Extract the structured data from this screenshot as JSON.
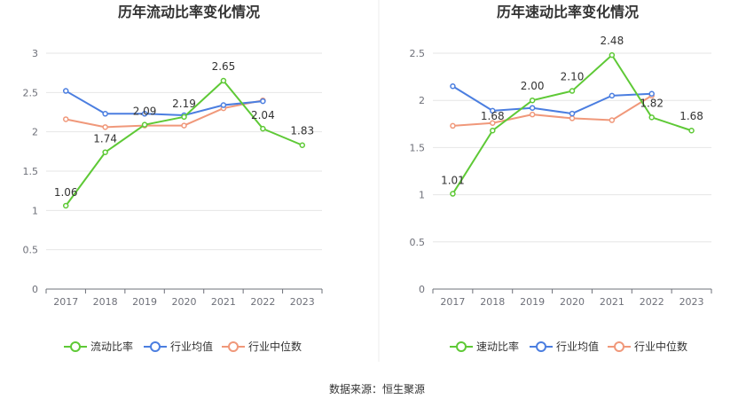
{
  "source_text": "数据来源：恒生聚源",
  "colors": {
    "main": "#5ec936",
    "avg": "#4b7ee0",
    "median": "#f0987a",
    "grid": "#e6e6e6",
    "axis": "#6e7079"
  },
  "chart_data": [
    {
      "type": "line",
      "title": "历年流动比率变化情况",
      "categories": [
        "2017",
        "2018",
        "2019",
        "2020",
        "2021",
        "2022",
        "2023"
      ],
      "ylim": [
        0,
        3
      ],
      "yticks": [
        "0",
        "0.5",
        "1",
        "1.5",
        "2",
        "2.5",
        "3"
      ],
      "grid": true,
      "legend_position": "bottom",
      "series": [
        {
          "name": "流动比率",
          "values": [
            1.06,
            1.74,
            2.09,
            2.19,
            2.65,
            2.04,
            1.83
          ],
          "labels": [
            "1.06",
            "1.74",
            "2.09",
            "2.19",
            "2.65",
            "2.04",
            "1.83"
          ]
        },
        {
          "name": "行业均值",
          "values": [
            2.52,
            2.23,
            2.23,
            2.21,
            2.34,
            2.39,
            null
          ]
        },
        {
          "name": "行业中位数",
          "values": [
            2.16,
            2.06,
            2.08,
            2.08,
            2.3,
            2.4,
            null
          ]
        }
      ]
    },
    {
      "type": "line",
      "title": "历年速动比率变化情况",
      "categories": [
        "2017",
        "2018",
        "2019",
        "2020",
        "2021",
        "2022",
        "2023"
      ],
      "ylim": [
        0,
        2.5
      ],
      "yticks": [
        "0",
        "0.5",
        "1",
        "1.5",
        "2",
        "2.5"
      ],
      "grid": true,
      "legend_position": "bottom",
      "series": [
        {
          "name": "速动比率",
          "values": [
            1.01,
            1.68,
            2.0,
            2.1,
            2.48,
            1.82,
            1.68
          ],
          "labels": [
            "1.01",
            "1.68",
            "2.00",
            "2.10",
            "2.48",
            "1.82",
            "1.68"
          ]
        },
        {
          "name": "行业均值",
          "values": [
            2.15,
            1.89,
            1.92,
            1.86,
            2.05,
            2.07,
            null
          ]
        },
        {
          "name": "行业中位数",
          "values": [
            1.73,
            1.76,
            1.85,
            1.81,
            1.79,
            2.05,
            null
          ]
        }
      ]
    }
  ]
}
